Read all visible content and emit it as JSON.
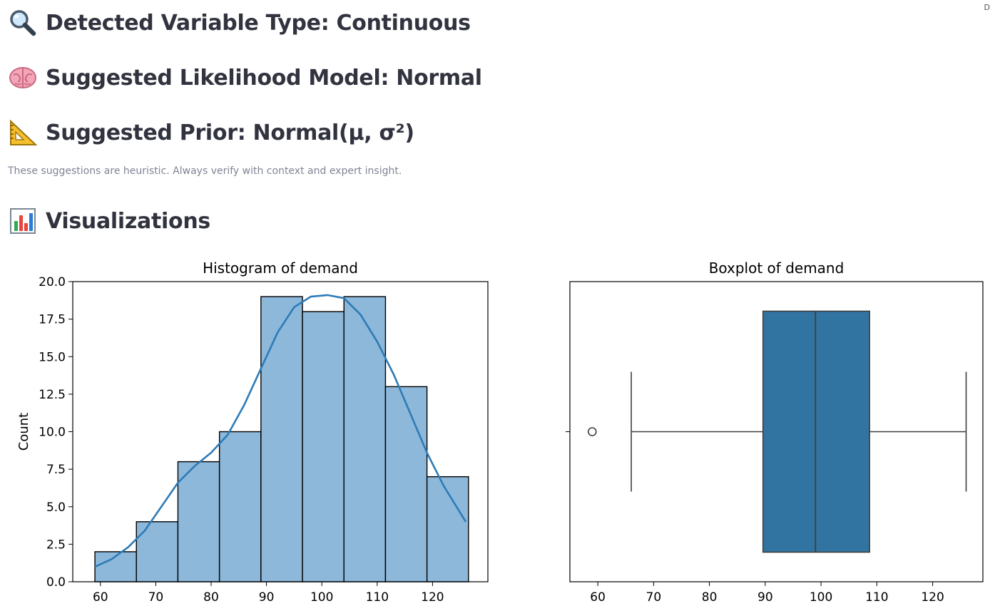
{
  "corner_text": "D",
  "headings": {
    "variable_type": "Detected Variable Type: Continuous",
    "likelihood": "Suggested Likelihood Model: Normal",
    "prior": "Suggested Prior: Normal(μ, σ²)",
    "visualizations": "Visualizations"
  },
  "icons": {
    "variable_type": "magnifying-glass-icon",
    "likelihood": "brain-icon",
    "prior": "triangular-ruler-icon",
    "visualizations": "bar-chart-icon"
  },
  "caption": "These suggestions are heuristic. Always verify with context and expert insight.",
  "colors": {
    "text": "#31333f",
    "caption": "#808495",
    "bar_fill": "#8db8da",
    "kde_line": "#2e7bb6",
    "box_fill": "#3274a1"
  },
  "chart_data": [
    {
      "type": "bar",
      "title": "Histogram of demand",
      "xlabel": "",
      "ylabel": "Count",
      "bin_edges": [
        59,
        66.5,
        74,
        81.5,
        89,
        96.5,
        104,
        111.5,
        119,
        126.5
      ],
      "values": [
        2,
        4,
        8,
        10,
        19,
        18,
        19,
        13,
        7
      ],
      "kde_curve": {
        "x": [
          59,
          62,
          65,
          68,
          71,
          74,
          77,
          80,
          83,
          86,
          89,
          92,
          95,
          98,
          101,
          104,
          107,
          110,
          113,
          116,
          119,
          122,
          126
        ],
        "y": [
          1.0,
          1.5,
          2.3,
          3.4,
          5.0,
          6.6,
          7.7,
          8.6,
          9.8,
          11.8,
          14.2,
          16.6,
          18.3,
          19.0,
          19.1,
          18.9,
          17.8,
          16.0,
          13.8,
          11.2,
          8.6,
          6.4,
          4.0
        ]
      },
      "xticks": [
        60,
        70,
        80,
        90,
        100,
        110,
        120
      ],
      "yticks": [
        "0.0",
        "2.5",
        "5.0",
        "7.5",
        "10.0",
        "12.5",
        "15.0",
        "17.5",
        "20.0"
      ],
      "xlim": [
        55,
        130
      ],
      "ylim": [
        0,
        20
      ]
    },
    {
      "type": "boxplot",
      "title": "Boxplot of demand",
      "whisker_low": 66,
      "q1": 89.6,
      "median": 99,
      "q3": 108.7,
      "whisker_high": 126,
      "outliers": [
        59
      ],
      "xticks": [
        60,
        70,
        80,
        90,
        100,
        110,
        120
      ],
      "xlim": [
        55,
        129
      ]
    }
  ]
}
